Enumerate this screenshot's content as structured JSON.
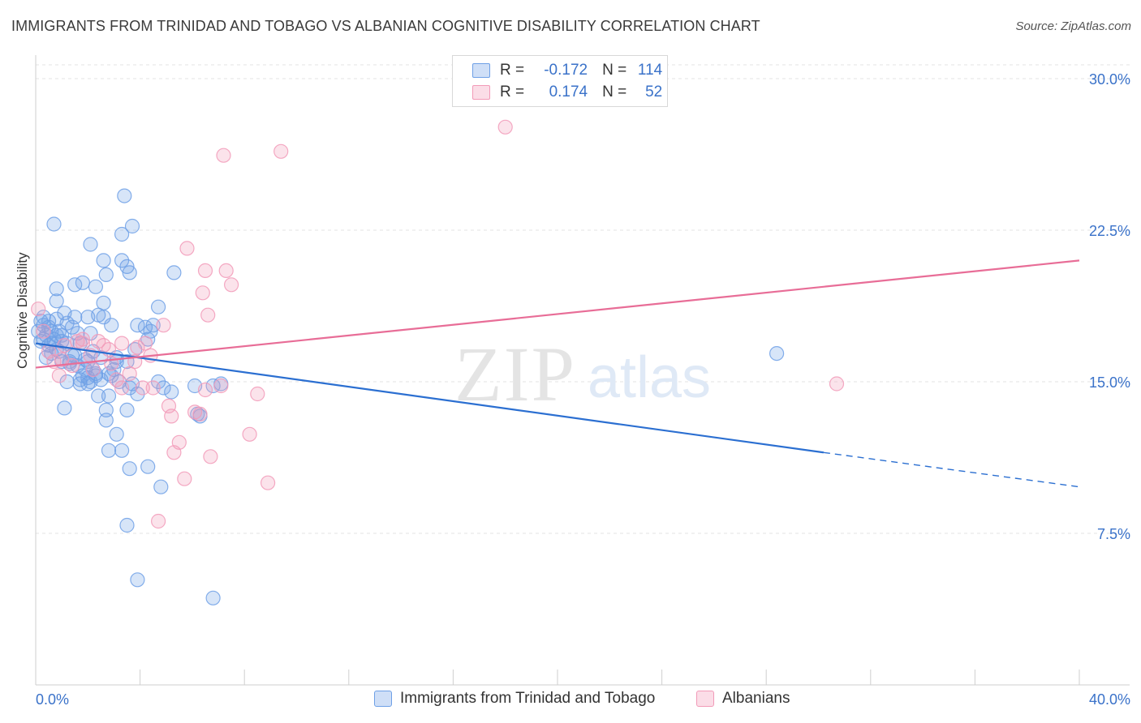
{
  "title": "IMMIGRANTS FROM TRINIDAD AND TOBAGO VS ALBANIAN COGNITIVE DISABILITY CORRELATION CHART",
  "source": "Source: ZipAtlas.com",
  "watermark": {
    "zip": "ZIP",
    "atlas": "atlas"
  },
  "legend": {
    "r_label": "R =",
    "n_label": "N =",
    "rows": [
      {
        "r": "-0.172",
        "n": "114",
        "color": "#7aaae8"
      },
      {
        "r": "0.174",
        "n": "52",
        "color": "#f2a3bf"
      }
    ]
  },
  "chart_data": {
    "type": "scatter",
    "title": "IMMIGRANTS FROM TRINIDAD AND TOBAGO VS ALBANIAN COGNITIVE DISABILITY CORRELATION CHART",
    "xlabel": "",
    "ylabel": "Cognitive Disability",
    "xlim": [
      0,
      40
    ],
    "ylim": [
      0,
      31.5
    ],
    "x_tick_labels": [
      "0.0%",
      "40.0%"
    ],
    "y_ticks": [
      7.5,
      15.0,
      22.5,
      30.0
    ],
    "y_tick_labels": [
      "7.5%",
      "15.0%",
      "22.5%",
      "30.0%"
    ],
    "grid": true,
    "series": [
      {
        "name": "Immigrants from Trinidad and Tobago",
        "color": "#6ea0e6",
        "line_color": "#2b6fd1",
        "trend": {
          "x0": 0,
          "y0": 16.9,
          "x1": 30.2,
          "y1": 11.5,
          "dash_to_x": 40,
          "dash_to_y": 9.8
        },
        "points": [
          [
            0.1,
            17.5
          ],
          [
            0.2,
            17.0
          ],
          [
            0.3,
            18.2
          ],
          [
            0.3,
            17.8
          ],
          [
            0.4,
            17.3
          ],
          [
            0.5,
            16.8
          ],
          [
            0.5,
            18.0
          ],
          [
            0.6,
            17.5
          ],
          [
            0.7,
            17.1
          ],
          [
            0.8,
            16.6
          ],
          [
            0.9,
            17.5
          ],
          [
            1.0,
            17.0
          ],
          [
            0.4,
            16.2
          ],
          [
            0.6,
            16.9
          ],
          [
            0.8,
            17.3
          ],
          [
            1.1,
            18.4
          ],
          [
            1.2,
            15.0
          ],
          [
            1.3,
            16.0
          ],
          [
            1.4,
            17.7
          ],
          [
            1.5,
            16.3
          ],
          [
            1.5,
            18.2
          ],
          [
            1.6,
            17.4
          ],
          [
            1.7,
            16.9
          ],
          [
            1.8,
            15.3
          ],
          [
            1.9,
            16.1
          ],
          [
            2.0,
            15.2
          ],
          [
            2.1,
            15.0
          ],
          [
            2.1,
            17.4
          ],
          [
            2.2,
            16.5
          ],
          [
            2.3,
            15.4
          ],
          [
            2.4,
            14.3
          ],
          [
            2.5,
            16.2
          ],
          [
            2.6,
            18.2
          ],
          [
            2.8,
            14.3
          ],
          [
            2.9,
            15.3
          ],
          [
            2.4,
            18.3
          ],
          [
            2.6,
            18.9
          ],
          [
            1.8,
            19.9
          ],
          [
            1.5,
            19.8
          ],
          [
            0.8,
            19.6
          ],
          [
            0.8,
            19.0
          ],
          [
            2.3,
            19.7
          ],
          [
            2.6,
            21.0
          ],
          [
            2.7,
            20.3
          ],
          [
            3.3,
            21.0
          ],
          [
            3.5,
            20.7
          ],
          [
            3.6,
            20.4
          ],
          [
            2.1,
            21.8
          ],
          [
            3.3,
            22.3
          ],
          [
            3.7,
            22.7
          ],
          [
            3.4,
            24.2
          ],
          [
            0.7,
            22.8
          ],
          [
            5.3,
            20.4
          ],
          [
            0.8,
            18.1
          ],
          [
            1.0,
            17.3
          ],
          [
            1.2,
            16.9
          ],
          [
            1.4,
            16.3
          ],
          [
            1.6,
            15.8
          ],
          [
            1.7,
            15.1
          ],
          [
            1.9,
            15.6
          ],
          [
            2.0,
            16.0
          ],
          [
            2.2,
            15.6
          ],
          [
            2.5,
            15.1
          ],
          [
            2.8,
            15.4
          ],
          [
            3.0,
            15.6
          ],
          [
            3.1,
            16.0
          ],
          [
            3.2,
            15.0
          ],
          [
            3.5,
            16.0
          ],
          [
            3.6,
            14.7
          ],
          [
            3.7,
            14.9
          ],
          [
            3.9,
            14.4
          ],
          [
            3.9,
            17.8
          ],
          [
            4.2,
            17.7
          ],
          [
            4.3,
            17.1
          ],
          [
            4.4,
            17.5
          ],
          [
            4.5,
            17.8
          ],
          [
            4.7,
            18.7
          ],
          [
            4.7,
            15.0
          ],
          [
            4.9,
            14.7
          ],
          [
            5.2,
            14.5
          ],
          [
            2.7,
            13.6
          ],
          [
            2.7,
            13.1
          ],
          [
            3.1,
            12.4
          ],
          [
            3.5,
            13.6
          ],
          [
            2.8,
            11.6
          ],
          [
            3.3,
            11.6
          ],
          [
            3.6,
            10.7
          ],
          [
            4.3,
            10.8
          ],
          [
            4.8,
            9.8
          ],
          [
            3.5,
            7.9
          ],
          [
            3.9,
            5.2
          ],
          [
            6.1,
            14.8
          ],
          [
            6.8,
            14.8
          ],
          [
            7.1,
            14.9
          ],
          [
            6.2,
            13.4
          ],
          [
            6.3,
            13.3
          ],
          [
            1.1,
            13.7
          ],
          [
            2.0,
            14.9
          ],
          [
            2.3,
            15.3
          ],
          [
            1.7,
            14.9
          ],
          [
            0.2,
            18.0
          ],
          [
            0.3,
            17.1
          ],
          [
            0.5,
            17.7
          ],
          [
            0.9,
            16.5
          ],
          [
            1.0,
            16.0
          ],
          [
            1.3,
            15.9
          ],
          [
            2.9,
            17.8
          ],
          [
            3.1,
            16.2
          ],
          [
            0.6,
            16.4
          ],
          [
            1.2,
            17.9
          ],
          [
            28.4,
            16.4
          ],
          [
            6.8,
            4.3
          ],
          [
            2.0,
            18.2
          ],
          [
            3.8,
            16.6
          ]
        ]
      },
      {
        "name": "Albanians",
        "color": "#f29ab8",
        "line_color": "#e86d97",
        "trend": {
          "x0": 0,
          "y0": 15.7,
          "x1": 40,
          "y1": 21.0
        },
        "points": [
          [
            0.1,
            18.6
          ],
          [
            0.3,
            17.5
          ],
          [
            0.5,
            16.5
          ],
          [
            0.7,
            16.0
          ],
          [
            0.9,
            15.3
          ],
          [
            1.1,
            16.8
          ],
          [
            1.4,
            15.8
          ],
          [
            1.6,
            17.0
          ],
          [
            1.8,
            17.1
          ],
          [
            2.1,
            16.3
          ],
          [
            2.2,
            15.6
          ],
          [
            2.4,
            17.0
          ],
          [
            2.6,
            16.8
          ],
          [
            2.9,
            15.9
          ],
          [
            3.1,
            15.1
          ],
          [
            3.3,
            16.9
          ],
          [
            3.6,
            15.4
          ],
          [
            3.8,
            16.0
          ],
          [
            3.9,
            16.7
          ],
          [
            4.2,
            16.9
          ],
          [
            4.4,
            16.3
          ],
          [
            4.5,
            14.7
          ],
          [
            4.9,
            17.8
          ],
          [
            5.1,
            13.8
          ],
          [
            5.2,
            13.3
          ],
          [
            5.3,
            11.5
          ],
          [
            5.5,
            12.0
          ],
          [
            5.7,
            10.2
          ],
          [
            6.1,
            13.5
          ],
          [
            6.3,
            13.4
          ],
          [
            6.5,
            14.6
          ],
          [
            6.6,
            18.3
          ],
          [
            6.4,
            19.4
          ],
          [
            6.5,
            20.5
          ],
          [
            5.8,
            21.6
          ],
          [
            7.3,
            20.5
          ],
          [
            7.5,
            19.8
          ],
          [
            6.7,
            11.3
          ],
          [
            7.1,
            14.8
          ],
          [
            8.2,
            12.4
          ],
          [
            8.5,
            14.4
          ],
          [
            8.9,
            10.0
          ],
          [
            9.4,
            26.4
          ],
          [
            7.2,
            26.2
          ],
          [
            18.0,
            27.6
          ],
          [
            30.7,
            14.9
          ],
          [
            4.7,
            8.1
          ],
          [
            3.3,
            14.7
          ],
          [
            1.8,
            16.9
          ],
          [
            2.8,
            16.6
          ],
          [
            1.0,
            16.1
          ],
          [
            4.1,
            14.7
          ]
        ]
      }
    ]
  },
  "bottom_legend": [
    {
      "label": "Immigrants from Trinidad and Tobago"
    },
    {
      "label": "Albanians"
    }
  ]
}
